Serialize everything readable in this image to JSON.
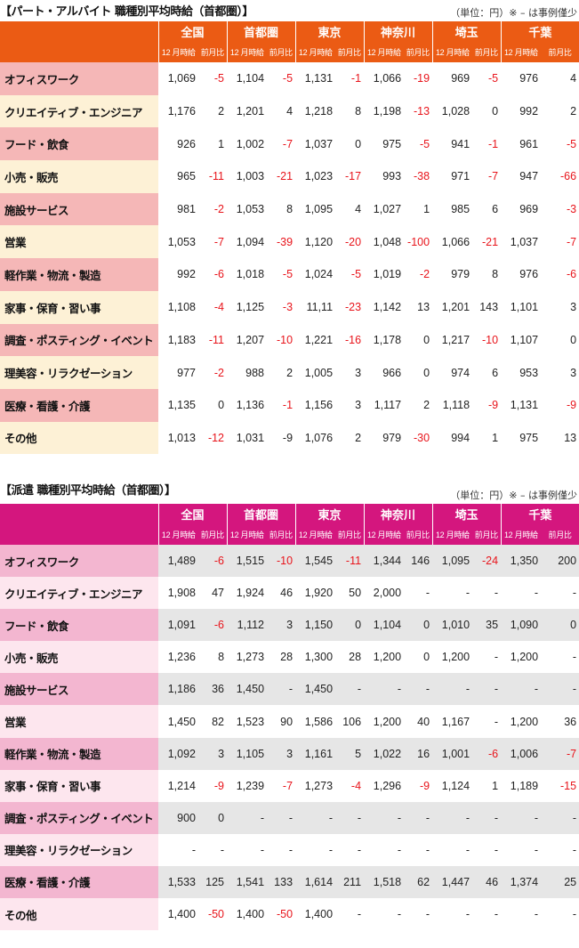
{
  "colors": {
    "part_header": "#eb5b14",
    "dispatch_header": "#d4167e",
    "negative": "#e8141b"
  },
  "part": {
    "title": "【パート・アルバイト 職種別平均時給（首都圏）】",
    "unit_note": "（単位：円）※ – は事例僅少",
    "regions": [
      "全国",
      "首都圏",
      "東京",
      "神奈川",
      "埼玉",
      "千葉"
    ],
    "sub_month": "12 月時給",
    "sub_change": "前月比",
    "rows": [
      {
        "cat": "オフィスワーク",
        "cells": [
          {
            "v": "1,069"
          },
          {
            "v": "-5",
            "neg": true
          },
          {
            "v": "1,104"
          },
          {
            "v": "-5",
            "neg": true
          },
          {
            "v": "1,131"
          },
          {
            "v": "-1",
            "neg": true
          },
          {
            "v": "1,066"
          },
          {
            "v": "-19",
            "neg": true
          },
          {
            "v": "969"
          },
          {
            "v": "-5",
            "neg": true
          },
          {
            "v": "976"
          },
          {
            "v": "4"
          }
        ]
      },
      {
        "cat": "クリエイティブ・エンジニア",
        "cells": [
          {
            "v": "1,176"
          },
          {
            "v": "2"
          },
          {
            "v": "1,201"
          },
          {
            "v": "4"
          },
          {
            "v": "1,218"
          },
          {
            "v": "8"
          },
          {
            "v": "1,198"
          },
          {
            "v": "-13",
            "neg": true
          },
          {
            "v": "1,028"
          },
          {
            "v": "0"
          },
          {
            "v": "992"
          },
          {
            "v": "2"
          }
        ]
      },
      {
        "cat": "フード・飲食",
        "cells": [
          {
            "v": "926"
          },
          {
            "v": "1"
          },
          {
            "v": "1,002"
          },
          {
            "v": "-7",
            "neg": true
          },
          {
            "v": "1,037"
          },
          {
            "v": "0"
          },
          {
            "v": "975"
          },
          {
            "v": "-5",
            "neg": true
          },
          {
            "v": "941"
          },
          {
            "v": "-1",
            "neg": true
          },
          {
            "v": "961"
          },
          {
            "v": "-5",
            "neg": true
          }
        ]
      },
      {
        "cat": "小売・販売",
        "cells": [
          {
            "v": "965"
          },
          {
            "v": "-11",
            "neg": true
          },
          {
            "v": "1,003"
          },
          {
            "v": "-21",
            "neg": true
          },
          {
            "v": "1,023"
          },
          {
            "v": "-17",
            "neg": true
          },
          {
            "v": "993"
          },
          {
            "v": "-38",
            "neg": true
          },
          {
            "v": "971"
          },
          {
            "v": "-7",
            "neg": true
          },
          {
            "v": "947"
          },
          {
            "v": "-66",
            "neg": true
          }
        ]
      },
      {
        "cat": "施設サービス",
        "cells": [
          {
            "v": "981"
          },
          {
            "v": "-2",
            "neg": true
          },
          {
            "v": "1,053"
          },
          {
            "v": "8"
          },
          {
            "v": "1,095"
          },
          {
            "v": "4"
          },
          {
            "v": "1,027"
          },
          {
            "v": "1"
          },
          {
            "v": "985"
          },
          {
            "v": "6"
          },
          {
            "v": "969"
          },
          {
            "v": "-3",
            "neg": true
          }
        ]
      },
      {
        "cat": "営業",
        "cells": [
          {
            "v": "1,053"
          },
          {
            "v": "-7",
            "neg": true
          },
          {
            "v": "1,094"
          },
          {
            "v": "-39",
            "neg": true
          },
          {
            "v": "1,120"
          },
          {
            "v": "-20",
            "neg": true
          },
          {
            "v": "1,048"
          },
          {
            "v": "-100",
            "neg": true
          },
          {
            "v": "1,066"
          },
          {
            "v": "-21",
            "neg": true
          },
          {
            "v": "1,037"
          },
          {
            "v": "-7",
            "neg": true
          }
        ]
      },
      {
        "cat": "軽作業・物流・製造",
        "cells": [
          {
            "v": "992"
          },
          {
            "v": "-6",
            "neg": true
          },
          {
            "v": "1,018"
          },
          {
            "v": "-5",
            "neg": true
          },
          {
            "v": "1,024"
          },
          {
            "v": "-5",
            "neg": true
          },
          {
            "v": "1,019"
          },
          {
            "v": "-2",
            "neg": true
          },
          {
            "v": "979"
          },
          {
            "v": "8"
          },
          {
            "v": "976"
          },
          {
            "v": "-6",
            "neg": true
          }
        ]
      },
      {
        "cat": "家事・保育・習い事",
        "cells": [
          {
            "v": "1,108"
          },
          {
            "v": "-4",
            "neg": true
          },
          {
            "v": "1,125"
          },
          {
            "v": "-3",
            "neg": true
          },
          {
            "v": "11,11"
          },
          {
            "v": "-23",
            "neg": true
          },
          {
            "v": "1,142"
          },
          {
            "v": "13"
          },
          {
            "v": "1,201"
          },
          {
            "v": "143"
          },
          {
            "v": "1,101"
          },
          {
            "v": "3"
          }
        ]
      },
      {
        "cat": "調査・ポスティング・イベント",
        "cells": [
          {
            "v": "1,183"
          },
          {
            "v": "-11",
            "neg": true
          },
          {
            "v": "1,207"
          },
          {
            "v": "-10",
            "neg": true
          },
          {
            "v": "1,221"
          },
          {
            "v": "-16",
            "neg": true
          },
          {
            "v": "1,178"
          },
          {
            "v": "0"
          },
          {
            "v": "1,217"
          },
          {
            "v": "-10",
            "neg": true
          },
          {
            "v": "1,107"
          },
          {
            "v": "0"
          }
        ]
      },
      {
        "cat": "理美容・リラクゼーション",
        "cells": [
          {
            "v": "977"
          },
          {
            "v": "-2",
            "neg": true
          },
          {
            "v": "988"
          },
          {
            "v": "2"
          },
          {
            "v": "1,005"
          },
          {
            "v": "3"
          },
          {
            "v": "966"
          },
          {
            "v": "0"
          },
          {
            "v": "974"
          },
          {
            "v": "6"
          },
          {
            "v": "953"
          },
          {
            "v": "3"
          }
        ]
      },
      {
        "cat": "医療・看護・介護",
        "cells": [
          {
            "v": "1,135"
          },
          {
            "v": "0"
          },
          {
            "v": "1,136"
          },
          {
            "v": "-1",
            "neg": true
          },
          {
            "v": "1,156"
          },
          {
            "v": "3"
          },
          {
            "v": "1,117"
          },
          {
            "v": "2"
          },
          {
            "v": "1,118"
          },
          {
            "v": "-9",
            "neg": true
          },
          {
            "v": "1,131"
          },
          {
            "v": "-9",
            "neg": true
          }
        ]
      },
      {
        "cat": "その他",
        "cells": [
          {
            "v": "1,013"
          },
          {
            "v": "-12",
            "neg": true
          },
          {
            "v": "1,031"
          },
          {
            "v": "-9"
          },
          {
            "v": "1,076"
          },
          {
            "v": "2"
          },
          {
            "v": "979"
          },
          {
            "v": "-30",
            "neg": true
          },
          {
            "v": "994"
          },
          {
            "v": "1"
          },
          {
            "v": "975"
          },
          {
            "v": "13"
          }
        ]
      }
    ]
  },
  "dispatch": {
    "title": "【派遣 職種別平均時給（首都圏）】",
    "unit_note": "（単位：円）※ – は事例僅少",
    "regions": [
      "全国",
      "首都圏",
      "東京",
      "神奈川",
      "埼玉",
      "千葉"
    ],
    "sub_month": "12 月時給",
    "sub_change": "前月比",
    "rows": [
      {
        "cat": "オフィスワーク",
        "cells": [
          {
            "v": "1,489"
          },
          {
            "v": "-6",
            "neg": true
          },
          {
            "v": "1,515"
          },
          {
            "v": "-10",
            "neg": true
          },
          {
            "v": "1,545"
          },
          {
            "v": "-11",
            "neg": true
          },
          {
            "v": "1,344"
          },
          {
            "v": "146"
          },
          {
            "v": "1,095"
          },
          {
            "v": "-24",
            "neg": true
          },
          {
            "v": "1,350"
          },
          {
            "v": "200"
          }
        ]
      },
      {
        "cat": "クリエイティブ・エンジニア",
        "cells": [
          {
            "v": "1,908"
          },
          {
            "v": "47"
          },
          {
            "v": "1,924"
          },
          {
            "v": "46"
          },
          {
            "v": "1,920"
          },
          {
            "v": "50"
          },
          {
            "v": "2,000"
          },
          {
            "v": "-"
          },
          {
            "v": "-"
          },
          {
            "v": "-"
          },
          {
            "v": "-"
          },
          {
            "v": "-"
          }
        ]
      },
      {
        "cat": "フード・飲食",
        "cells": [
          {
            "v": "1,091"
          },
          {
            "v": "-6",
            "neg": true
          },
          {
            "v": "1,112"
          },
          {
            "v": "3"
          },
          {
            "v": "1,150"
          },
          {
            "v": "0"
          },
          {
            "v": "1,104"
          },
          {
            "v": "0"
          },
          {
            "v": "1,010"
          },
          {
            "v": "35"
          },
          {
            "v": "1,090"
          },
          {
            "v": "0"
          }
        ]
      },
      {
        "cat": "小売・販売",
        "cells": [
          {
            "v": "1,236"
          },
          {
            "v": "8"
          },
          {
            "v": "1,273"
          },
          {
            "v": "28"
          },
          {
            "v": "1,300"
          },
          {
            "v": "28"
          },
          {
            "v": "1,200"
          },
          {
            "v": "0"
          },
          {
            "v": "1,200"
          },
          {
            "v": "-"
          },
          {
            "v": "1,200"
          },
          {
            "v": "-"
          }
        ]
      },
      {
        "cat": "施設サービス",
        "cells": [
          {
            "v": "1,186"
          },
          {
            "v": "36"
          },
          {
            "v": "1,450"
          },
          {
            "v": "-"
          },
          {
            "v": "1,450"
          },
          {
            "v": "-"
          },
          {
            "v": "-"
          },
          {
            "v": "-"
          },
          {
            "v": "-"
          },
          {
            "v": "-"
          },
          {
            "v": "-"
          },
          {
            "v": "-"
          }
        ]
      },
      {
        "cat": "営業",
        "cells": [
          {
            "v": "1,450"
          },
          {
            "v": "82"
          },
          {
            "v": "1,523"
          },
          {
            "v": "90"
          },
          {
            "v": "1,586"
          },
          {
            "v": "106"
          },
          {
            "v": "1,200"
          },
          {
            "v": "40"
          },
          {
            "v": "1,167"
          },
          {
            "v": "-"
          },
          {
            "v": "1,200"
          },
          {
            "v": "36"
          }
        ]
      },
      {
        "cat": "軽作業・物流・製造",
        "cells": [
          {
            "v": "1,092"
          },
          {
            "v": "3"
          },
          {
            "v": "1,105"
          },
          {
            "v": "3"
          },
          {
            "v": "1,161"
          },
          {
            "v": "5"
          },
          {
            "v": "1,022"
          },
          {
            "v": "16"
          },
          {
            "v": "1,001"
          },
          {
            "v": "-6",
            "neg": true
          },
          {
            "v": "1,006"
          },
          {
            "v": "-7",
            "neg": true
          }
        ]
      },
      {
        "cat": "家事・保育・習い事",
        "cells": [
          {
            "v": "1,214"
          },
          {
            "v": "-9",
            "neg": true
          },
          {
            "v": "1,239"
          },
          {
            "v": "-7",
            "neg": true
          },
          {
            "v": "1,273"
          },
          {
            "v": "-4",
            "neg": true
          },
          {
            "v": "1,296"
          },
          {
            "v": "-9",
            "neg": true
          },
          {
            "v": "1,124"
          },
          {
            "v": "1"
          },
          {
            "v": "1,189"
          },
          {
            "v": "-15",
            "neg": true
          }
        ]
      },
      {
        "cat": "調査・ポスティング・イベント",
        "cells": [
          {
            "v": "900"
          },
          {
            "v": "0"
          },
          {
            "v": "-"
          },
          {
            "v": "-"
          },
          {
            "v": "-"
          },
          {
            "v": "-"
          },
          {
            "v": "-"
          },
          {
            "v": "-"
          },
          {
            "v": "-"
          },
          {
            "v": "-"
          },
          {
            "v": "-"
          },
          {
            "v": "-"
          }
        ]
      },
      {
        "cat": "理美容・リラクゼーション",
        "cells": [
          {
            "v": "-"
          },
          {
            "v": "-"
          },
          {
            "v": "-"
          },
          {
            "v": "-"
          },
          {
            "v": "-"
          },
          {
            "v": "-"
          },
          {
            "v": "-"
          },
          {
            "v": "-"
          },
          {
            "v": "-"
          },
          {
            "v": "-"
          },
          {
            "v": "-"
          },
          {
            "v": "-"
          }
        ]
      },
      {
        "cat": "医療・看護・介護",
        "cells": [
          {
            "v": "1,533"
          },
          {
            "v": "125"
          },
          {
            "v": "1,541"
          },
          {
            "v": "133"
          },
          {
            "v": "1,614"
          },
          {
            "v": "211"
          },
          {
            "v": "1,518"
          },
          {
            "v": "62"
          },
          {
            "v": "1,447"
          },
          {
            "v": "46"
          },
          {
            "v": "1,374"
          },
          {
            "v": "25"
          }
        ]
      },
      {
        "cat": "その他",
        "cells": [
          {
            "v": "1,400"
          },
          {
            "v": "-50",
            "neg": true
          },
          {
            "v": "1,400"
          },
          {
            "v": "-50",
            "neg": true
          },
          {
            "v": "1,400"
          },
          {
            "v": "-"
          },
          {
            "v": "-"
          },
          {
            "v": "-"
          },
          {
            "v": "-"
          },
          {
            "v": "-"
          },
          {
            "v": "-"
          },
          {
            "v": "-"
          }
        ]
      }
    ]
  }
}
